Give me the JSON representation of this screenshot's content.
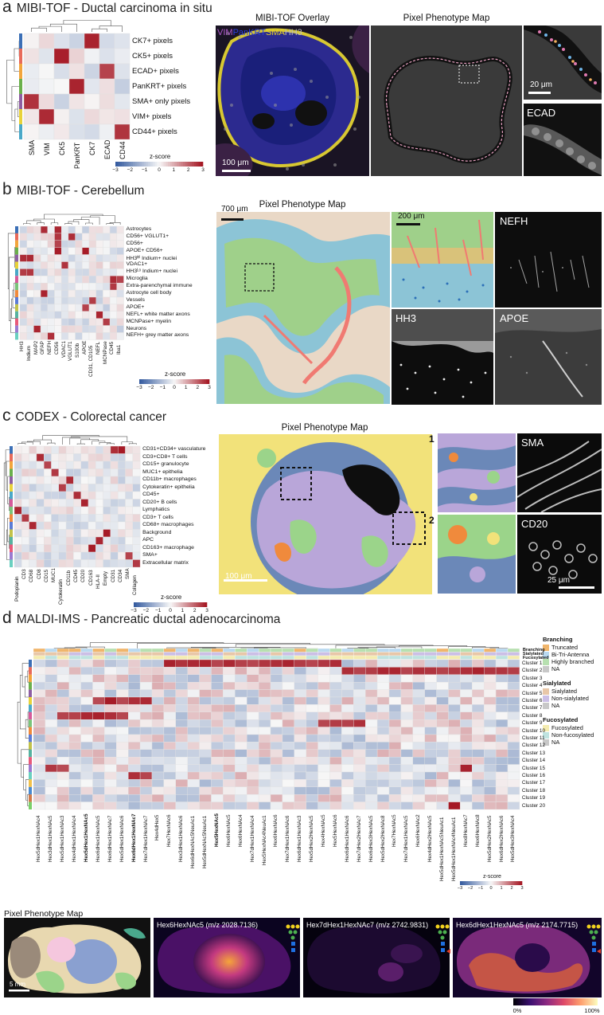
{
  "panel_a": {
    "letter": "a",
    "title": "MIBI-TOF - Ductal carcinoma in situ",
    "rows": [
      "CK7+ pixels",
      "CK5+ pixels",
      "ECAD+ pixels",
      "PanKRT+ pixels",
      "SMA+ only pixels",
      "VIM+ pixels",
      "CD44+ pixels"
    ],
    "cols": [
      "SMA",
      "VIM",
      "CK5",
      "PanKRT",
      "CK7",
      "ECAD",
      "CD44"
    ],
    "colorbar_title": "z-score",
    "colorbar_ticks": [
      "−3",
      "−2",
      "−1",
      "0",
      "1",
      "2",
      "3"
    ],
    "overlay_title": "MIBI-TOF Overlay",
    "overlay_legend": [
      {
        "text": "VIM",
        "color": "#b25bd0"
      },
      {
        "text": "PanKRT",
        "color": "#2a3ee0"
      },
      {
        "text": "SMA",
        "color": "#e6d12a"
      },
      {
        "text": "HH3",
        "color": "#bdbdbd"
      }
    ],
    "overlay_scale": "100 μm",
    "map_title": "Pixel Phenotype Map",
    "zoom_scale": "20 μm",
    "ecad_label": "ECAD"
  },
  "panel_b": {
    "letter": "b",
    "title": "MIBI-TOF - Cerebellum",
    "rows": [
      "Astrocytes",
      "CD56+ VGLUT1+",
      "CD56+",
      "APOE+ CD56+",
      "HH3ᴴⁱ Indium+ nuclei",
      "VDAC1+",
      "HH3ᴸᵒ Indium+ nuclei",
      "Microglia",
      "Extra-parenchymal immune",
      "Astrocyte cell body",
      "Vessels",
      "APOE+",
      "NEFL+ white matter axons",
      "MCNPase+ myelin",
      "Neurons",
      "NEFH+ grey matter axons"
    ],
    "cols": [
      "HH3",
      "Indium",
      "MAP2",
      "GFAP",
      "NEFH",
      "CD56",
      "VDAC1",
      "VGLUT1",
      "S100b",
      "APOE",
      "CD31, CD105",
      "NEFL",
      "MCNPase",
      "CD45",
      "Iba1"
    ],
    "colorbar_title": "z-score",
    "colorbar_ticks": [
      "−3",
      "−2",
      "−1",
      "0",
      "1",
      "2",
      "3"
    ],
    "map_title": "Pixel Phenotype Map",
    "map_scale": "700 μm",
    "zoom_scale": "200 μm",
    "nefh_label": "NEFH",
    "hh3_label": "HH3",
    "apoe_label": "APOE"
  },
  "panel_c": {
    "letter": "c",
    "title": "CODEX - Colorectal cancer",
    "rows": [
      "CD31+CD34+ vasculature",
      "CD3+CD8+ T cells",
      "CD15+ granulocyte",
      "MUC1+ epithelia",
      "CD11b+ macrophages",
      "Cytokeratin+ epithelia",
      "CD45+",
      "CD20+ B cells",
      "Lymphatics",
      "CD3+ T cells",
      "CD68+ macrophages",
      "Background",
      "APC",
      "CD163+ macrophage",
      "SMA+",
      "Extracellular matrix"
    ],
    "cols": [
      "Podoplanin",
      "CD3",
      "CD68",
      "CD8",
      "CD15",
      "MUC1",
      "Cytokeratin",
      "CD11b",
      "CD45",
      "CD20",
      "CD163",
      "HLA-II",
      "Empty",
      "CD31",
      "CD34",
      "SMA",
      "Collagen"
    ],
    "colorbar_title": "z-score",
    "colorbar_ticks": [
      "−3",
      "−2",
      "−1",
      "0",
      "1",
      "2",
      "3"
    ],
    "map_title": "Pixel Phenotype Map",
    "map_scale": "100 μm",
    "zoom_1": "1",
    "zoom_2": "2",
    "sma_label": "SMA",
    "cd20_label": "CD20",
    "marker_scale": "25 μm"
  },
  "panel_d": {
    "letter": "d",
    "title": "MALDI-IMS - Pancreatic ductal adenocarcinoma",
    "annotation_rows": [
      "Branching",
      "Sialylated",
      "Fucosylated"
    ],
    "clusters": [
      "Cluster 1",
      "Cluster 2",
      "Cluster 3",
      "Cluster 4",
      "Cluster 5",
      "Cluster 6",
      "Cluster 7",
      "Cluster 8",
      "Cluster 9",
      "Cluster 10",
      "Cluster 11",
      "Cluster 12",
      "Cluster 13",
      "Cluster 14",
      "Cluster 15",
      "Cluster 16",
      "Cluster 17",
      "Cluster 18",
      "Cluster 19",
      "Cluster 20"
    ],
    "glycans": [
      "Hex5dHex1HexNAc4",
      "Hex3dHex1HexNAc5",
      "Hex5dHex1HexNAc3",
      "Hex4dHex1HexNAc4",
      "Hex5dHex1HexNAc5",
      "Hex6dHex1HexNAc5",
      "Hex6dHex1HexNAc7",
      "Hex5dHex1HexNAc6",
      "Hex6dHex1HexNAc7",
      "Hex7dHex1HexNAc7",
      "Hex4dHex5",
      "Hex7HexNAc6",
      "Hex3dHex1HexNAc6",
      "Hex6dHexNAc5NeuAc1",
      "Hex5dHexNAc5NeuAc1",
      "Hex5HexNAc5",
      "Hex6HexNAc5",
      "Hex6HexNAc4",
      "Hex7dHex1HexNAc4",
      "Hex5HexNAc4NeuAc1",
      "Hex6HexNAc6",
      "Hex7dHex1HexNAc6",
      "Hex6dHex1HexNAc3",
      "Hex5dHex2HexNAc5",
      "Hex4HexNAc5",
      "Hex5HexNAc6",
      "Hex6dHex1HexNAc6",
      "Hex7dHex2HexNAc7",
      "Hex6dHex3HexNAc5",
      "Hex5dHex2HexNAc8",
      "Hex7HexNAc5",
      "Hex7dHex1HexNAc5",
      "Hex6HexNAc2",
      "Hex4dHex2HexNAc5",
      "Hex5dHex1HexNAc5NeuAc1",
      "Hex5dHex1HexNAc4NeuAc1",
      "Hex8HexNAc7",
      "Hex6HexNAc8",
      "Hex5dHex2HexNAc5",
      "Hex6dHex2HexNAc6",
      "Hex5dHex3HexNAc4"
    ],
    "bold_glycans": [
      4,
      8,
      15
    ],
    "legend": [
      {
        "title": "Branching",
        "items": [
          {
            "label": "Truncated",
            "color": "#f0b56b"
          },
          {
            "label": "Bi-Tri-Antenna",
            "color": "#b9d9f0"
          },
          {
            "label": "Highly branched",
            "color": "#b7e0b0"
          },
          {
            "label": "NA",
            "color": "#c8c8c8"
          }
        ]
      },
      {
        "title": "Sialylated",
        "items": [
          {
            "label": "Sialylated",
            "color": "#e8c7a8"
          },
          {
            "label": "Non-sialylated",
            "color": "#cbbfe6"
          },
          {
            "label": "NA",
            "color": "#c8c8c8"
          }
        ]
      },
      {
        "title": "Fucosylated",
        "items": [
          {
            "label": "Fucosylated",
            "color": "#f4ecb0"
          },
          {
            "label": "Non-fucosylated",
            "color": "#bfe3e0"
          },
          {
            "label": "NA",
            "color": "#c8c8c8"
          }
        ]
      }
    ],
    "colorbar_title": "z-score",
    "colorbar_ticks": [
      "−3",
      "−2",
      "−1",
      "0",
      "1",
      "2",
      "3"
    ],
    "bottom_map_title": "Pixel Phenotype Map",
    "bottom_scale": "5 mm",
    "ion_images": [
      "Hex6HexNAc5 (m/z 2028.7136)",
      "Hex7dHex1HexNAc7 (m/z 2742.9831)",
      "Hex6dHex1HexNAc5 (m/z 2174.7715)"
    ],
    "intensity_min": "0%",
    "intensity_max": "100%"
  }
}
